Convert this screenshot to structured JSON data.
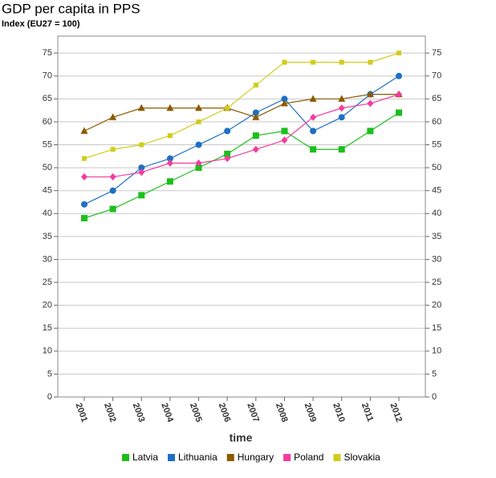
{
  "chart_data": {
    "type": "line",
    "title": "GDP per capita in PPS",
    "subtitle": "Index (EU27 = 100)",
    "x_label": "time",
    "categories": [
      "2001",
      "2002",
      "2003",
      "2004",
      "2005",
      "2006",
      "2007",
      "2008",
      "2009",
      "2010",
      "2011",
      "2012"
    ],
    "series": [
      {
        "name": "Latvia",
        "color": "#1cbf1c",
        "marker": "square",
        "values": [
          39,
          41,
          44,
          47,
          50,
          53,
          57,
          58,
          54,
          54,
          58,
          62
        ]
      },
      {
        "name": "Lithuania",
        "color": "#1e6fc4",
        "marker": "circle",
        "values": [
          42,
          45,
          50,
          52,
          55,
          58,
          62,
          65,
          58,
          61,
          66,
          70
        ]
      },
      {
        "name": "Hungary",
        "color": "#8c5a00",
        "marker": "triangle",
        "values": [
          58,
          61,
          63,
          63,
          63,
          63,
          61,
          64,
          65,
          65,
          66,
          66
        ]
      },
      {
        "name": "Poland",
        "color": "#f23c9e",
        "marker": "diamond",
        "values": [
          48,
          48,
          49,
          51,
          51,
          52,
          54,
          56,
          61,
          63,
          64,
          66
        ]
      },
      {
        "name": "Slovakia",
        "color": "#d2cc1a",
        "marker": "small-square",
        "values": [
          52,
          54,
          55,
          57,
          60,
          63,
          68,
          73,
          73,
          73,
          73,
          75
        ]
      }
    ],
    "ylim": [
      0,
      78.7
    ],
    "yticks": [
      0,
      5,
      10,
      15,
      20,
      25,
      30,
      35,
      40,
      45,
      50,
      55,
      60,
      65,
      70,
      75
    ],
    "grid": true,
    "legend": "bottom"
  }
}
